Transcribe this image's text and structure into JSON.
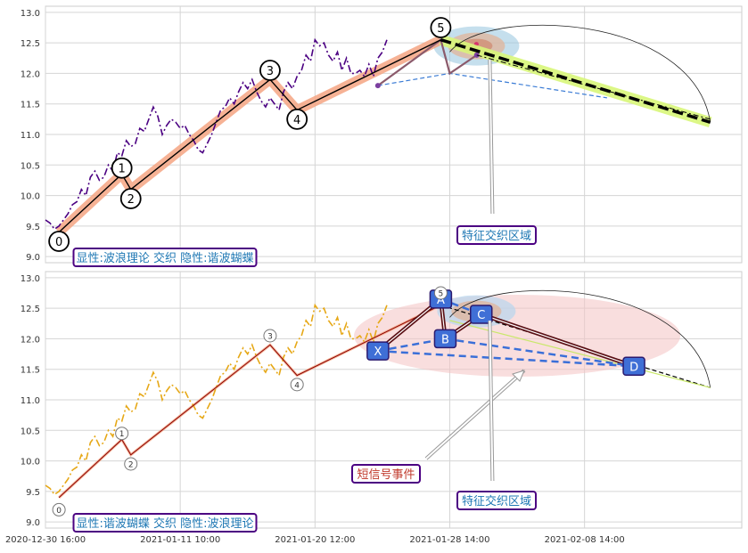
{
  "chart_data": [
    {
      "type": "line",
      "title": "",
      "xlabel": "",
      "ylabel": "",
      "ylim": [
        8.9,
        13.1
      ],
      "yticks": [
        "9.0",
        "9.5",
        "10.0",
        "10.5",
        "11.0",
        "11.5",
        "12.0",
        "12.5",
        "13.0"
      ],
      "ytick_values": [
        9.0,
        9.5,
        10.0,
        10.5,
        11.0,
        11.5,
        12.0,
        12.5,
        13.0
      ],
      "grid": true,
      "series": [
        {
          "color": "#4b0082",
          "style": "dashdot",
          "points": [
            [
              0,
              9.6
            ],
            [
              1,
              9.55
            ],
            [
              2,
              9.45
            ],
            [
              3,
              9.5
            ],
            [
              4,
              9.6
            ],
            [
              5,
              9.7
            ],
            [
              6,
              9.85
            ],
            [
              7,
              9.9
            ],
            [
              8,
              10.1
            ],
            [
              9,
              10.0
            ],
            [
              10,
              10.3
            ],
            [
              11,
              10.4
            ],
            [
              12,
              10.25
            ],
            [
              13,
              10.3
            ],
            [
              14,
              10.5
            ],
            [
              15,
              10.4
            ],
            [
              16,
              10.7
            ],
            [
              17,
              10.65
            ],
            [
              18,
              10.9
            ],
            [
              19,
              10.8
            ],
            [
              20,
              10.85
            ],
            [
              21,
              11.1
            ],
            [
              22,
              11.05
            ],
            [
              23,
              11.25
            ],
            [
              24,
              11.45
            ],
            [
              25,
              11.3
            ],
            [
              26,
              11.0
            ],
            [
              27,
              11.15
            ],
            [
              28,
              11.25
            ],
            [
              29,
              11.2
            ],
            [
              30,
              11.1
            ],
            [
              31,
              11.15
            ],
            [
              32,
              11.0
            ],
            [
              33,
              10.9
            ],
            [
              34,
              10.75
            ],
            [
              35,
              10.7
            ],
            [
              36,
              10.85
            ],
            [
              37,
              11.0
            ],
            [
              38,
              11.2
            ],
            [
              39,
              11.4
            ],
            [
              40,
              11.45
            ],
            [
              41,
              11.6
            ],
            [
              42,
              11.5
            ],
            [
              43,
              11.7
            ],
            [
              44,
              11.85
            ],
            [
              45,
              11.75
            ],
            [
              46,
              11.9
            ],
            [
              47,
              11.7
            ],
            [
              48,
              11.55
            ],
            [
              49,
              11.45
            ],
            [
              50,
              11.6
            ],
            [
              51,
              11.5
            ],
            [
              52,
              11.4
            ],
            [
              53,
              11.7
            ],
            [
              54,
              11.85
            ],
            [
              55,
              11.75
            ],
            [
              56,
              11.95
            ],
            [
              57,
              12.05
            ],
            [
              58,
              12.3
            ],
            [
              59,
              12.2
            ],
            [
              60,
              12.55
            ],
            [
              61,
              12.45
            ],
            [
              62,
              12.5
            ],
            [
              63,
              12.3
            ],
            [
              64,
              12.2
            ],
            [
              65,
              12.35
            ],
            [
              66,
              12.05
            ],
            [
              67,
              12.25
            ],
            [
              68,
              12.0
            ],
            [
              69,
              12.0
            ],
            [
              70,
              12.05
            ],
            [
              71,
              11.95
            ],
            [
              72,
              12.15
            ],
            [
              73,
              11.95
            ],
            [
              74,
              12.25
            ],
            [
              75,
              12.35
            ],
            [
              76,
              12.55
            ]
          ]
        },
        {
          "color": "#000000",
          "style": "zigzag",
          "points": [
            [
              3,
              9.4
            ],
            [
              17,
              10.35
            ],
            [
              19,
              10.1
            ],
            [
              50,
              11.9
            ],
            [
              56,
              11.4
            ],
            [
              88,
              12.55
            ]
          ]
        },
        {
          "color": "#000000",
          "style": "dashed-thick",
          "points": [
            [
              88,
              12.55
            ],
            [
              148,
              11.2
            ]
          ]
        }
      ],
      "wave_labels": [
        {
          "label": "0",
          "x": 3,
          "y": 9.25
        },
        {
          "label": "1",
          "x": 17,
          "y": 10.45
        },
        {
          "label": "2",
          "x": 19,
          "y": 9.95
        },
        {
          "label": "3",
          "x": 50,
          "y": 12.05
        },
        {
          "label": "4",
          "x": 56,
          "y": 11.25
        },
        {
          "label": "5",
          "x": 88,
          "y": 12.75
        }
      ],
      "annotations": [
        {
          "text": "显性:波浪理论 交织 隐性:谐波蝴蝶"
        },
        {
          "text": "特征交织区域"
        }
      ]
    },
    {
      "type": "line",
      "title": "",
      "xlabel": "",
      "ylabel": "",
      "ylim": [
        8.9,
        13.1
      ],
      "yticks": [
        "9.0",
        "9.5",
        "10.0",
        "10.5",
        "11.0",
        "11.5",
        "12.0",
        "12.5",
        "13.0"
      ],
      "ytick_values": [
        9.0,
        9.5,
        10.0,
        10.5,
        11.0,
        11.5,
        12.0,
        12.5,
        13.0
      ],
      "grid": true,
      "xticks": [
        "2020-12-30 16:00",
        "2021-01-11 10:00",
        "2021-01-20 12:00",
        "2021-01-28 14:00",
        "2021-02-08 14:00"
      ],
      "xtick_values": [
        0,
        30,
        60,
        90,
        120
      ],
      "series": [
        {
          "color": "#e6a817",
          "style": "dashdot",
          "points": [
            [
              0,
              9.6
            ],
            [
              1,
              9.55
            ],
            [
              2,
              9.45
            ],
            [
              3,
              9.5
            ],
            [
              4,
              9.6
            ],
            [
              5,
              9.7
            ],
            [
              6,
              9.85
            ],
            [
              7,
              9.9
            ],
            [
              8,
              10.1
            ],
            [
              9,
              10.0
            ],
            [
              10,
              10.3
            ],
            [
              11,
              10.4
            ],
            [
              12,
              10.25
            ],
            [
              13,
              10.3
            ],
            [
              14,
              10.5
            ],
            [
              15,
              10.4
            ],
            [
              16,
              10.7
            ],
            [
              17,
              10.65
            ],
            [
              18,
              10.9
            ],
            [
              19,
              10.8
            ],
            [
              20,
              10.85
            ],
            [
              21,
              11.1
            ],
            [
              22,
              11.05
            ],
            [
              23,
              11.25
            ],
            [
              24,
              11.45
            ],
            [
              25,
              11.3
            ],
            [
              26,
              11.0
            ],
            [
              27,
              11.15
            ],
            [
              28,
              11.25
            ],
            [
              29,
              11.2
            ],
            [
              30,
              11.1
            ],
            [
              31,
              11.15
            ],
            [
              32,
              11.0
            ],
            [
              33,
              10.9
            ],
            [
              34,
              10.75
            ],
            [
              35,
              10.7
            ],
            [
              36,
              10.85
            ],
            [
              37,
              11.0
            ],
            [
              38,
              11.2
            ],
            [
              39,
              11.4
            ],
            [
              40,
              11.45
            ],
            [
              41,
              11.6
            ],
            [
              42,
              11.5
            ],
            [
              43,
              11.7
            ],
            [
              44,
              11.85
            ],
            [
              45,
              11.75
            ],
            [
              46,
              11.9
            ],
            [
              47,
              11.7
            ],
            [
              48,
              11.55
            ],
            [
              49,
              11.45
            ],
            [
              50,
              11.6
            ],
            [
              51,
              11.5
            ],
            [
              52,
              11.4
            ],
            [
              53,
              11.7
            ],
            [
              54,
              11.85
            ],
            [
              55,
              11.75
            ],
            [
              56,
              11.95
            ],
            [
              57,
              12.05
            ],
            [
              58,
              12.3
            ],
            [
              59,
              12.2
            ],
            [
              60,
              12.55
            ],
            [
              61,
              12.45
            ],
            [
              62,
              12.5
            ],
            [
              63,
              12.3
            ],
            [
              64,
              12.2
            ],
            [
              65,
              12.35
            ],
            [
              66,
              12.05
            ],
            [
              67,
              12.25
            ],
            [
              68,
              12.0
            ],
            [
              69,
              12.0
            ],
            [
              70,
              12.05
            ],
            [
              71,
              11.95
            ],
            [
              72,
              12.15
            ],
            [
              73,
              11.95
            ],
            [
              74,
              12.25
            ],
            [
              75,
              12.35
            ],
            [
              76,
              12.55
            ]
          ]
        },
        {
          "color": "#8b0000",
          "style": "zigzag",
          "points": [
            [
              3,
              9.4
            ],
            [
              17,
              10.35
            ],
            [
              19,
              10.1
            ],
            [
              50,
              11.9
            ],
            [
              56,
              11.4
            ],
            [
              88,
              12.55
            ]
          ]
        }
      ],
      "harmonic_points": [
        {
          "label": "X",
          "x": 74,
          "y": 11.8
        },
        {
          "label": "A",
          "x": 88,
          "y": 12.65
        },
        {
          "label": "B",
          "x": 89,
          "y": 12.0
        },
        {
          "label": "C",
          "x": 97,
          "y": 12.4
        },
        {
          "label": "D",
          "x": 131,
          "y": 11.55
        }
      ],
      "wave_labels": [
        {
          "label": "0",
          "x": 3,
          "y": 9.2
        },
        {
          "label": "1",
          "x": 17,
          "y": 10.45
        },
        {
          "label": "2",
          "x": 19,
          "y": 9.95
        },
        {
          "label": "3",
          "x": 50,
          "y": 12.05
        },
        {
          "label": "4",
          "x": 56,
          "y": 11.25
        },
        {
          "label": "5",
          "x": 88,
          "y": 12.75
        }
      ],
      "annotations": [
        {
          "text": "显性:谐波蝴蝶 交织 隐性:波浪理论"
        },
        {
          "text": "短信号事件"
        },
        {
          "text": "特征交织区域"
        }
      ]
    }
  ]
}
